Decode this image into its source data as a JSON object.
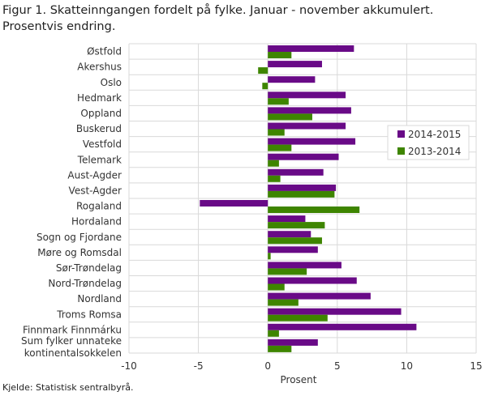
{
  "chart_data": {
    "type": "bar",
    "orientation": "horizontal",
    "title": "Figur 1. Skatteinngangen fordelt på fylke. Januar - november akkumulert. Prosentvis endring.",
    "xlabel": "Prosent",
    "ylabel": "",
    "xlim": [
      -10,
      15
    ],
    "xticks": [
      -10,
      -5,
      0,
      5,
      10,
      15
    ],
    "grid": true,
    "legend_position": "right",
    "categories": [
      "Østfold",
      "Akershus",
      "Oslo",
      "Hedmark",
      "Oppland",
      "Buskerud",
      "Vestfold",
      "Telemark",
      "Aust-Agder",
      "Vest-Agder",
      "Rogaland",
      "Hordaland",
      "Sogn og Fjordane",
      "Møre og Romsdal",
      "Sør-Trøndelag",
      "Nord-Trøndelag",
      "Nordland",
      "Troms Romsa",
      "Finnmark Finnmárku",
      "Sum fylker unnateke kontinentalsokkelen"
    ],
    "series": [
      {
        "name": "2014-2015",
        "color": "#690a87",
        "values": [
          6.2,
          3.9,
          3.4,
          5.6,
          6.0,
          5.6,
          6.3,
          5.1,
          4.0,
          4.9,
          -4.9,
          2.7,
          3.1,
          3.6,
          5.3,
          6.4,
          7.4,
          9.6,
          10.7,
          3.6
        ]
      },
      {
        "name": "2013-2014",
        "color": "#3e8500",
        "values": [
          1.7,
          -0.7,
          -0.4,
          1.5,
          3.2,
          1.2,
          1.7,
          0.8,
          0.9,
          4.8,
          6.6,
          4.1,
          3.9,
          0.2,
          2.8,
          1.2,
          2.2,
          4.3,
          0.8,
          1.7
        ]
      }
    ]
  },
  "source": "Kjelde: Statistisk sentralbyrå."
}
